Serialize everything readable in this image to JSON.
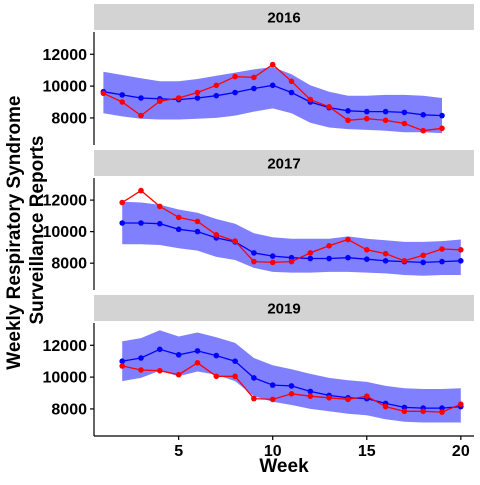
{
  "chart_data": {
    "type": "line",
    "facet_layout": "vertical",
    "xlabel": "Week",
    "ylabel_lines": [
      "Weekly Respiratory Syndrome",
      "Surveillance Reports"
    ],
    "x_ticks": [
      5,
      10,
      15,
      20
    ],
    "x_range": [
      0.5,
      20.7
    ],
    "y_ticks": [
      8000,
      10000,
      12000
    ],
    "colors": {
      "band": "#8080FF",
      "expected": "#0000FF",
      "observed": "#FF0000",
      "strip": "#D3D3D3"
    },
    "panels": [
      {
        "strip": "2016",
        "ylim": [
          6300,
          13400
        ],
        "x": [
          1,
          2,
          3,
          4,
          5,
          6,
          7,
          8,
          9,
          10,
          11,
          12,
          13,
          14,
          15,
          16,
          17,
          18,
          19
        ],
        "band_upper": [
          10900,
          10700,
          10500,
          10300,
          10300,
          10450,
          10650,
          10850,
          11050,
          11200,
          10750,
          10050,
          9650,
          9400,
          9400,
          9450,
          9450,
          9400,
          9250
        ],
        "band_lower": [
          8300,
          8100,
          7950,
          7900,
          7900,
          7950,
          8000,
          8150,
          8400,
          8600,
          8300,
          7700,
          7400,
          7300,
          7250,
          7200,
          7100,
          7100,
          7050
        ],
        "expected": [
          9650,
          9450,
          9250,
          9200,
          9150,
          9250,
          9400,
          9600,
          9850,
          10050,
          9600,
          9000,
          8650,
          8450,
          8400,
          8400,
          8350,
          8200,
          8150
        ],
        "observed": [
          9550,
          9000,
          8150,
          9050,
          9250,
          9600,
          10050,
          10600,
          10550,
          11350,
          10300,
          9150,
          8700,
          7850,
          7950,
          7850,
          7650,
          7200,
          7350
        ]
      },
      {
        "strip": "2017",
        "ylim": [
          6300,
          13400
        ],
        "x": [
          2,
          3,
          4,
          5,
          6,
          7,
          8,
          9,
          10,
          11,
          12,
          13,
          14,
          15,
          16,
          17,
          18,
          19,
          20
        ],
        "band_upper": [
          11900,
          11850,
          11700,
          11400,
          11200,
          10800,
          10500,
          9900,
          9650,
          9550,
          9550,
          9550,
          9700,
          9550,
          9450,
          9350,
          9350,
          9400,
          9500
        ],
        "band_lower": [
          9200,
          9200,
          9150,
          8950,
          8800,
          8400,
          8200,
          7700,
          7450,
          7400,
          7400,
          7450,
          7450,
          7400,
          7350,
          7250,
          7200,
          7250,
          7250
        ],
        "expected": [
          10550,
          10550,
          10500,
          10150,
          10000,
          9600,
          9350,
          8650,
          8450,
          8350,
          8300,
          8300,
          8350,
          8250,
          8150,
          8100,
          8050,
          8100,
          8150
        ],
        "observed": [
          11850,
          12600,
          11600,
          10900,
          10650,
          9800,
          9400,
          8100,
          8050,
          8100,
          8650,
          9100,
          9500,
          8850,
          8600,
          8150,
          8500,
          8900,
          8850
        ]
      },
      {
        "strip": "2019",
        "ylim": [
          6300,
          13400
        ],
        "x": [
          2,
          3,
          4,
          5,
          6,
          7,
          8,
          9,
          10,
          11,
          12,
          13,
          14,
          15,
          16,
          17,
          18,
          19,
          20
        ],
        "band_upper": [
          12250,
          12450,
          12950,
          12550,
          12800,
          12500,
          12150,
          11200,
          10750,
          10500,
          10200,
          9950,
          9800,
          9700,
          9450,
          9300,
          9250,
          9250,
          9300
        ],
        "band_lower": [
          9750,
          9950,
          10400,
          10050,
          10350,
          10150,
          9750,
          8800,
          8450,
          8250,
          8000,
          7850,
          7700,
          7600,
          7350,
          7200,
          7150,
          7150,
          7150
        ],
        "expected": [
          11000,
          11200,
          11750,
          11400,
          11650,
          11350,
          11000,
          9950,
          9500,
          9450,
          9100,
          8850,
          8700,
          8650,
          8350,
          8100,
          8050,
          8050,
          8150
        ],
        "observed": [
          10700,
          10450,
          10400,
          10150,
          10900,
          10050,
          10050,
          8650,
          8600,
          8950,
          8800,
          8700,
          8600,
          8800,
          8150,
          7850,
          7850,
          7800,
          8300
        ]
      }
    ]
  }
}
